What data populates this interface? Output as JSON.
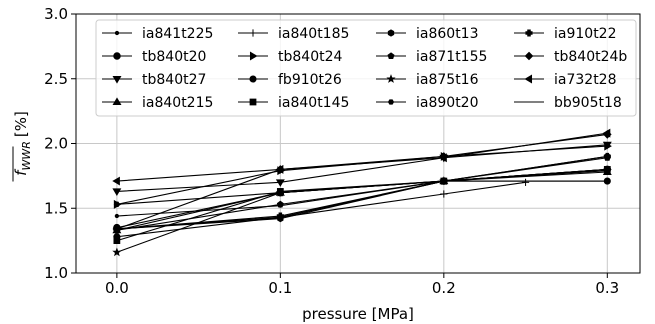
{
  "chart_data": {
    "type": "line",
    "xlabel": "pressure [MPa]",
    "ylabel_main": "f",
    "ylabel_sub": "WWR",
    "ylabel_unit": "[%]",
    "xlim": [
      -0.025,
      0.32
    ],
    "ylim": [
      1.0,
      3.0
    ],
    "xticks": [
      0.0,
      0.1,
      0.2,
      0.3
    ],
    "xtick_labels": [
      "0.0",
      "0.1",
      "0.2",
      "0.3"
    ],
    "yticks": [
      1.0,
      1.5,
      2.0,
      2.5,
      3.0
    ],
    "ytick_labels": [
      "1.0",
      "1.5",
      "2.0",
      "2.5",
      "3.0"
    ],
    "grid": true,
    "legend_position": "top",
    "legend_columns": 4,
    "series_color": "#000000",
    "series": [
      {
        "name": "ia841t225",
        "marker": "point",
        "x": [
          0.0,
          0.1,
          0.2,
          0.3
        ],
        "y": [
          1.44,
          1.52,
          1.71,
          1.8
        ]
      },
      {
        "name": "tb840t20",
        "marker": "circle",
        "x": [
          0.0,
          0.1,
          0.2,
          0.3
        ],
        "y": [
          1.35,
          1.62,
          1.71,
          1.8
        ]
      },
      {
        "name": "tb840t27",
        "marker": "triangle_down",
        "x": [
          0.0,
          0.1,
          0.2,
          0.3
        ],
        "y": [
          1.63,
          1.7,
          1.89,
          1.99
        ]
      },
      {
        "name": "ia840t215",
        "marker": "triangle_up",
        "x": [
          0.0,
          0.1,
          0.2,
          0.3
        ],
        "y": [
          1.33,
          1.62,
          1.71,
          1.78
        ]
      },
      {
        "name": "ia840t185",
        "marker": "plus",
        "x": [
          0.0,
          0.1,
          0.2,
          0.25
        ],
        "y": [
          1.34,
          1.43,
          1.61,
          1.7
        ]
      },
      {
        "name": "tb840t24",
        "marker": "triangle_right",
        "x": [
          0.0,
          0.1,
          0.2,
          0.3
        ],
        "y": [
          1.53,
          1.79,
          1.9,
          1.98
        ]
      },
      {
        "name": "fb910t26",
        "marker": "octagon",
        "x": [
          0.0,
          0.1,
          0.2,
          0.3
        ],
        "y": [
          1.28,
          1.43,
          1.71,
          1.71
        ]
      },
      {
        "name": "ia840t145",
        "marker": "square",
        "x": [
          0.0,
          0.1,
          0.2,
          0.3
        ],
        "y": [
          1.25,
          1.63,
          1.71,
          1.8
        ]
      },
      {
        "name": "ia860t13",
        "marker": "hexagon",
        "x": [
          0.0,
          0.1,
          0.2,
          0.3
        ],
        "y": [
          1.34,
          1.42,
          1.71,
          1.9
        ]
      },
      {
        "name": "ia871t155",
        "marker": "pentagon",
        "x": [
          0.0,
          0.1,
          0.2,
          0.3
        ],
        "y": [
          1.33,
          1.53,
          1.71,
          1.89
        ]
      },
      {
        "name": "ia875t16",
        "marker": "star",
        "x": [
          0.0,
          0.1,
          0.2,
          0.3
        ],
        "y": [
          1.16,
          1.62,
          1.71,
          1.79
        ]
      },
      {
        "name": "ia890t20",
        "marker": "hexagon_small",
        "x": [
          0.0,
          0.1,
          0.2,
          0.3
        ],
        "y": [
          1.53,
          1.62,
          1.71,
          1.8
        ]
      },
      {
        "name": "ia910t22",
        "marker": "plus_filled",
        "x": [
          0.0,
          0.1,
          0.2,
          0.3
        ],
        "y": [
          1.34,
          1.44,
          1.71,
          1.9
        ]
      },
      {
        "name": "tb840t24b",
        "marker": "diamond",
        "x": [
          0.0,
          0.1,
          0.2,
          0.3
        ],
        "y": [
          1.34,
          1.8,
          1.9,
          2.07
        ]
      },
      {
        "name": "ia732t28",
        "marker": "triangle_left",
        "x": [
          0.0,
          0.1,
          0.2,
          0.3
        ],
        "y": [
          1.71,
          1.8,
          1.89,
          2.08
        ]
      },
      {
        "name": "bb905t18",
        "marker": "none",
        "x": [
          0.0,
          0.1,
          0.2,
          0.3
        ],
        "y": [
          1.34,
          1.43,
          1.71,
          1.71
        ]
      }
    ]
  }
}
